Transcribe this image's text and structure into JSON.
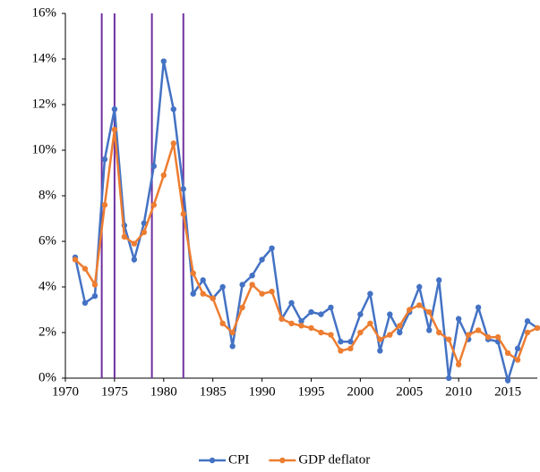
{
  "chart_data": {
    "type": "line",
    "x": [
      1971,
      1972,
      1973,
      1974,
      1975,
      1976,
      1977,
      1978,
      1979,
      1980,
      1981,
      1982,
      1983,
      1984,
      1985,
      1986,
      1987,
      1988,
      1989,
      1990,
      1991,
      1992,
      1993,
      1994,
      1995,
      1996,
      1997,
      1998,
      1999,
      2000,
      2001,
      2002,
      2003,
      2004,
      2005,
      2006,
      2007,
      2008,
      2009,
      2010,
      2011,
      2012,
      2013,
      2014,
      2015,
      2016,
      2017,
      2018
    ],
    "series": [
      {
        "name": "CPI",
        "color": "#4472c4",
        "values": [
          5.3,
          3.3,
          3.6,
          9.6,
          11.8,
          6.7,
          5.2,
          6.8,
          9.3,
          13.9,
          11.8,
          8.3,
          3.7,
          4.3,
          3.5,
          4.0,
          1.4,
          4.1,
          4.5,
          5.2,
          5.7,
          2.6,
          3.3,
          2.5,
          2.9,
          2.8,
          3.1,
          1.6,
          1.6,
          2.8,
          3.7,
          1.2,
          2.8,
          2.0,
          2.9,
          4.0,
          2.1,
          4.3,
          0.0,
          2.6,
          1.7,
          3.1,
          1.7,
          1.6,
          -0.1,
          1.3,
          2.5,
          2.2
        ]
      },
      {
        "name": "GDP deflator",
        "color": "#ed7d31",
        "values": [
          5.2,
          4.8,
          4.1,
          7.6,
          10.9,
          6.2,
          5.9,
          6.4,
          7.6,
          8.9,
          10.3,
          7.2,
          4.6,
          3.7,
          3.5,
          2.4,
          2.0,
          3.1,
          4.1,
          3.7,
          3.8,
          2.6,
          2.4,
          2.3,
          2.2,
          2.0,
          1.9,
          1.2,
          1.3,
          2.0,
          2.4,
          1.7,
          1.9,
          2.3,
          3.0,
          3.2,
          2.9,
          2.0,
          1.7,
          0.6,
          1.9,
          2.1,
          1.8,
          1.8,
          1.1,
          0.8,
          2.0,
          2.2
        ]
      }
    ],
    "vlines": [
      1973.7,
      1975,
      1978.8,
      1982
    ],
    "vline_color": "#7030a0",
    "xlim": [
      1970,
      2018
    ],
    "xticks": [
      1970,
      1975,
      1980,
      1985,
      1990,
      1995,
      2000,
      2005,
      2010,
      2015
    ],
    "ylim": [
      0,
      16
    ],
    "yticks": [
      {
        "value": 0,
        "label": "0%"
      },
      {
        "value": 2,
        "label": "2%"
      },
      {
        "value": 4,
        "label": "4%"
      },
      {
        "value": 6,
        "label": "6%"
      },
      {
        "value": 8,
        "label": "8%"
      },
      {
        "value": 10,
        "label": "10%"
      },
      {
        "value": 12,
        "label": "12%"
      },
      {
        "value": 14,
        "label": "14%"
      },
      {
        "value": 16,
        "label": "16%"
      }
    ],
    "legend": "bottom"
  }
}
